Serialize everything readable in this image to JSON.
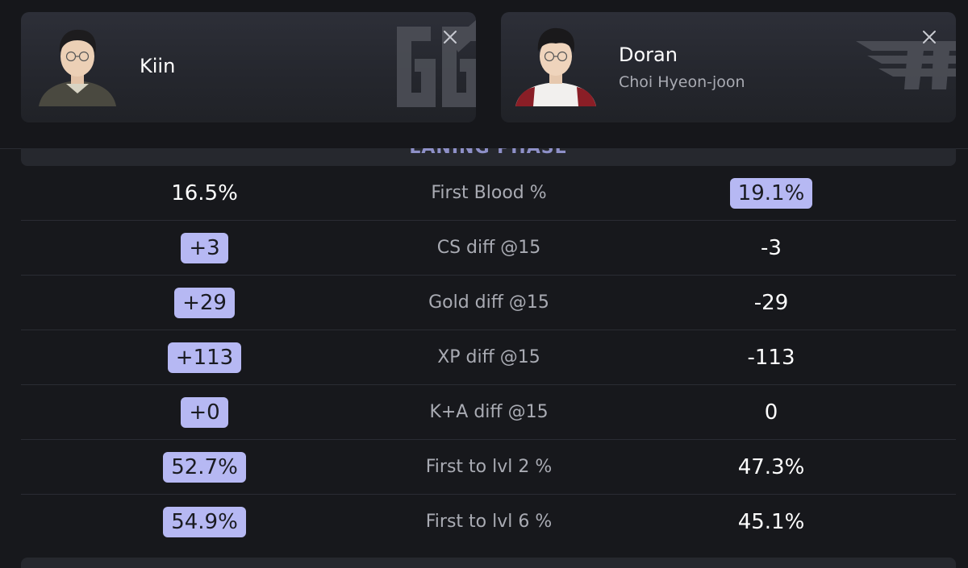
{
  "players": {
    "left": {
      "name": "Kiin",
      "real_name": "",
      "team_logo": "gen-g-logo"
    },
    "right": {
      "name": "Doran",
      "real_name": "Choi Hyeon-joon",
      "team_logo": "t1-logo"
    }
  },
  "section": {
    "title": "LANING PHASE"
  },
  "stats": [
    {
      "label": "First Blood %",
      "left": "16.5%",
      "right": "19.1%",
      "winner": "right"
    },
    {
      "label": "CS diff @15",
      "left": "+3",
      "right": "-3",
      "winner": "left"
    },
    {
      "label": "Gold diff @15",
      "left": "+29",
      "right": "-29",
      "winner": "left"
    },
    {
      "label": "XP diff @15",
      "left": "+113",
      "right": "-113",
      "winner": "left"
    },
    {
      "label": "K+A diff @15",
      "left": "+0",
      "right": "0",
      "winner": "left"
    },
    {
      "label": "First to lvl 2 %",
      "left": "52.7%",
      "right": "47.3%",
      "winner": "left"
    },
    {
      "label": "First to lvl 6 %",
      "left": "54.9%",
      "right": "45.1%",
      "winner": "left"
    }
  ],
  "colors": {
    "background": "#17181c",
    "highlight": "#b6b8f3",
    "muted_text": "#a9abb3",
    "section_title": "#8e90c8"
  }
}
